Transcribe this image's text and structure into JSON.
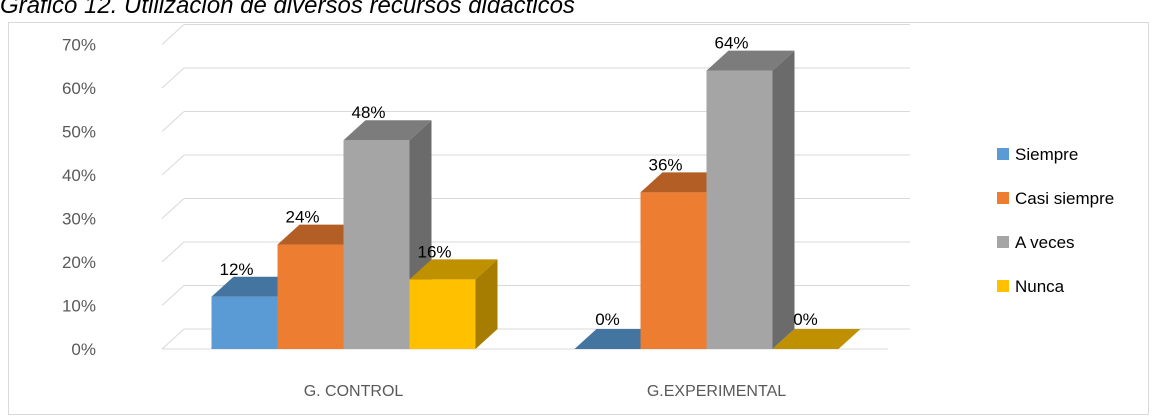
{
  "caption": "Gráfico 12. Utilización de diversos recursos didácticos",
  "chart_data": {
    "type": "bar",
    "title": "",
    "xlabel": "",
    "ylabel": "",
    "categories": [
      "G. CONTROL",
      "G.EXPERIMENTAL"
    ],
    "ylim": [
      0,
      70
    ],
    "yticks": [
      "0%",
      "10%",
      "20%",
      "30%",
      "40%",
      "50%",
      "60%",
      "70%"
    ],
    "grid": true,
    "legend_position": "right",
    "series": [
      {
        "name": "Siempre",
        "values": [
          12,
          0
        ],
        "labels": [
          "12%",
          "0%"
        ],
        "color": "#5b9bd5"
      },
      {
        "name": "Casi siempre",
        "values": [
          24,
          36
        ],
        "labels": [
          "24%",
          "36%"
        ],
        "color": "#ed7d31"
      },
      {
        "name": "A veces",
        "values": [
          48,
          64
        ],
        "labels": [
          "48%",
          "64%"
        ],
        "color": "#a5a5a5"
      },
      {
        "name": "Nunca",
        "values": [
          16,
          0
        ],
        "labels": [
          "16%",
          "0%"
        ],
        "color": "#ffc000"
      }
    ]
  }
}
